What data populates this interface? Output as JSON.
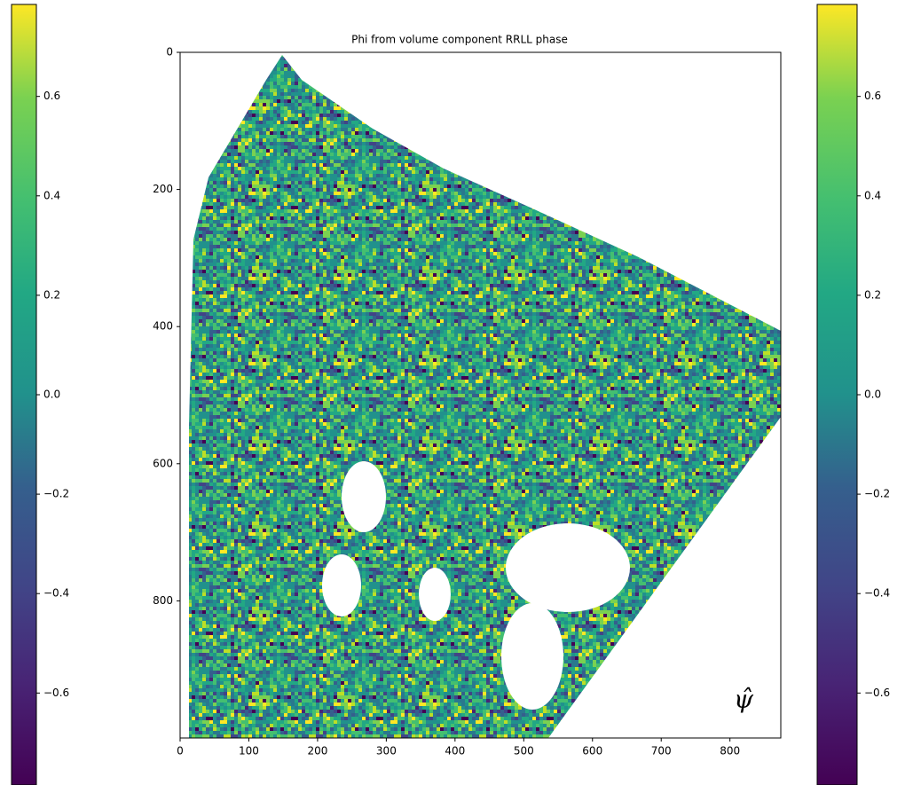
{
  "chart_data": {
    "type": "heatmap",
    "title": "Phi from volume component RRLL phase",
    "xlim": [
      0,
      874
    ],
    "ylim": [
      1000,
      0
    ],
    "xticks": [
      0,
      100,
      200,
      300,
      400,
      500,
      600,
      700,
      800
    ],
    "yticks": [
      0,
      200,
      400,
      600,
      800
    ],
    "colormap": "viridis",
    "colorbar": {
      "lim": [
        -0.785,
        0.785
      ],
      "ticks": [
        {
          "value": -0.6,
          "label": "−0.6"
        },
        {
          "value": -0.4,
          "label": "−0.4"
        },
        {
          "value": -0.2,
          "label": "−0.2"
        },
        {
          "value": 0,
          "label": "0.0"
        },
        0.2,
        0.4,
        0.6
      ]
    },
    "annotation": "ψ̂"
  }
}
